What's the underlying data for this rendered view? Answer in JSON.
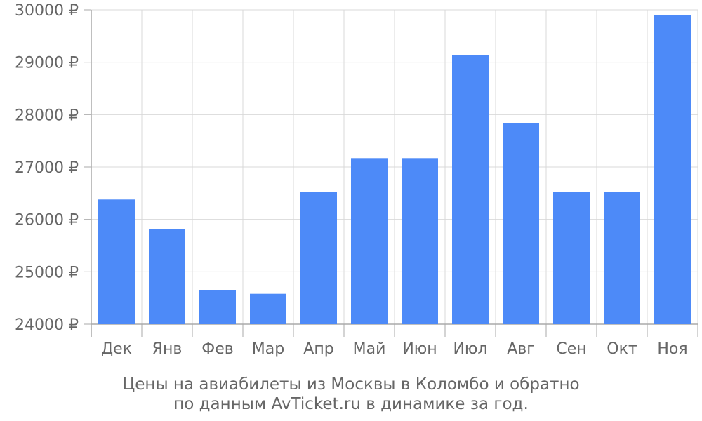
{
  "chart_data": {
    "type": "bar",
    "categories": [
      "Дек",
      "Янв",
      "Фев",
      "Мар",
      "Апр",
      "Май",
      "Июн",
      "Июл",
      "Авг",
      "Сен",
      "Окт",
      "Ноя"
    ],
    "values": [
      26380,
      25810,
      24650,
      24580,
      26520,
      27170,
      27170,
      29140,
      27840,
      26530,
      26530,
      29900
    ],
    "ylim": [
      24000,
      30000
    ],
    "yticks": [
      24000,
      25000,
      26000,
      27000,
      28000,
      29000,
      30000
    ],
    "currency": "₽",
    "grid": true,
    "bar_color": "#4d8af8",
    "grid_color": "#d9d9d9",
    "label_color": "#666666"
  },
  "caption": {
    "line1": "Цены на авиабилеты из Москвы в Коломбо и обратно",
    "line2": "по данным AvTicket.ru в динамике за год."
  }
}
